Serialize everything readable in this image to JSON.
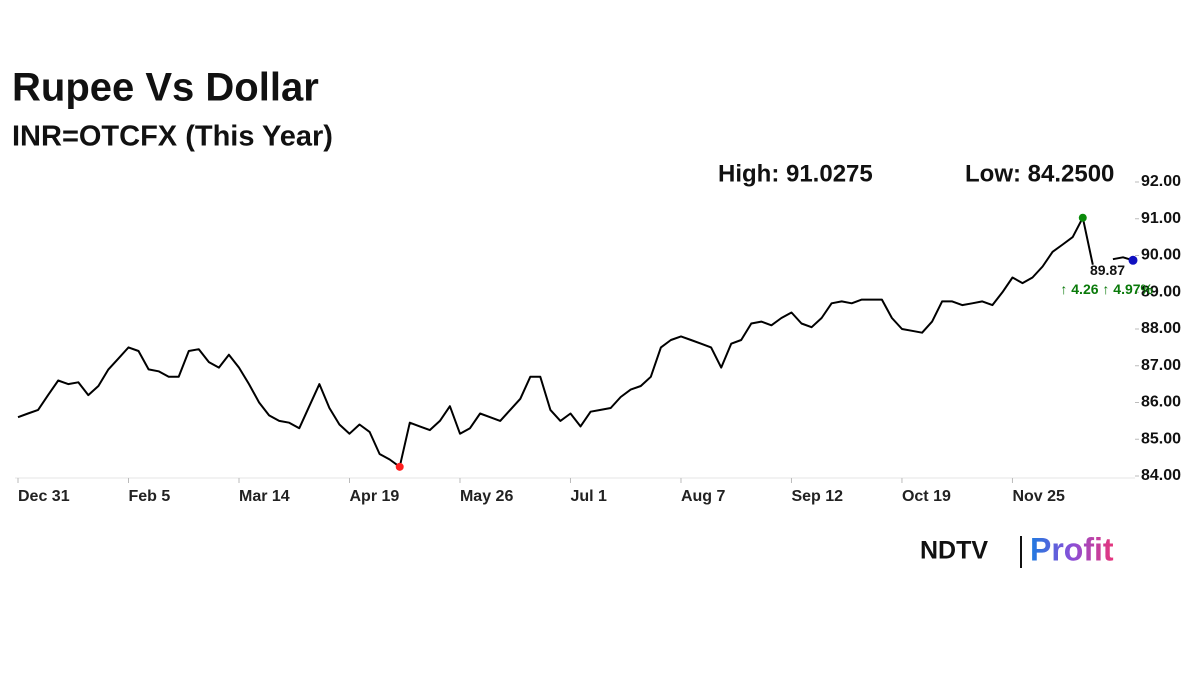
{
  "chart_data": {
    "type": "line",
    "title": "Rupee Vs Dollar",
    "subtitle": "INR=OTCFX (This Year)",
    "high_label": "High: 91.0275",
    "low_label": "Low: 84.2500",
    "last_label": "89.87",
    "change_label": "↑ 4.26 ↑ 4.97%",
    "categories": [
      "Dec 31",
      null,
      null,
      null,
      null,
      null,
      null,
      null,
      null,
      null,
      null,
      "Feb 5",
      null,
      null,
      null,
      null,
      null,
      null,
      null,
      null,
      null,
      null,
      "Mar 14",
      null,
      null,
      null,
      null,
      null,
      null,
      null,
      null,
      null,
      null,
      "Apr 19",
      null,
      null,
      null,
      null,
      null,
      null,
      null,
      null,
      null,
      null,
      "May 26",
      null,
      null,
      null,
      null,
      null,
      null,
      null,
      null,
      null,
      null,
      "Jul 1",
      null,
      null,
      null,
      null,
      null,
      null,
      null,
      null,
      null,
      null,
      "Aug 7",
      null,
      null,
      null,
      null,
      null,
      null,
      null,
      null,
      null,
      null,
      "Sep 12",
      null,
      null,
      null,
      null,
      null,
      null,
      null,
      null,
      null,
      null,
      "Oct 19",
      null,
      null,
      null,
      null,
      null,
      null,
      null,
      null,
      null,
      null,
      "Nov 25",
      null,
      null,
      null,
      null,
      null,
      null,
      null,
      null,
      null,
      null,
      null,
      null
    ],
    "series": [
      {
        "color": "#000000",
        "values": [
          85.6,
          85.7,
          85.8,
          86.2,
          86.6,
          86.5,
          86.55,
          86.2,
          86.45,
          86.9,
          87.2,
          87.5,
          87.4,
          86.9,
          86.85,
          86.7,
          86.7,
          87.4,
          87.45,
          87.1,
          86.95,
          87.3,
          86.95,
          86.5,
          86.0,
          85.65,
          85.5,
          85.45,
          85.3,
          85.9,
          86.5,
          85.85,
          85.4,
          85.15,
          85.4,
          85.2,
          84.6,
          84.45,
          84.25,
          85.45,
          85.35,
          85.25,
          85.5,
          85.9,
          85.15,
          85.3,
          85.7,
          85.6,
          85.5,
          85.8,
          86.1,
          86.7,
          86.7,
          85.8,
          85.5,
          85.7,
          85.35,
          85.75,
          85.8,
          85.85,
          86.15,
          86.35,
          86.45,
          86.7,
          87.5,
          87.7,
          87.8,
          87.7,
          87.6,
          87.5,
          86.95,
          87.6,
          87.7,
          88.15,
          88.2,
          88.1,
          88.3,
          88.45,
          88.15,
          88.05,
          88.3,
          88.7,
          88.75,
          88.7,
          88.8,
          88.8,
          88.8,
          88.3,
          88.0,
          87.95,
          87.9,
          88.2,
          88.75,
          88.75,
          88.65,
          88.7,
          88.75,
          88.65,
          89.0,
          89.4,
          89.25,
          89.4,
          89.7,
          90.1,
          90.3,
          90.5,
          91.0275,
          89.75,
          null,
          89.9,
          89.95,
          89.87
        ]
      }
    ],
    "high_color": "#0a8a0a",
    "low_color": "#ff2020",
    "last_color": "#1010c0",
    "change_color": "#0a7a0a",
    "ylim": [
      84,
      92
    ],
    "yticks": [
      {
        "value": 84,
        "label": "84.00"
      },
      {
        "value": 85,
        "label": "85.00"
      },
      {
        "value": 86,
        "label": "86.00"
      },
      {
        "value": 87,
        "label": "87.00"
      },
      {
        "value": 88,
        "label": "88.00"
      },
      {
        "value": 89,
        "label": "89.00"
      },
      {
        "value": 90,
        "label": "90.00"
      },
      {
        "value": 91,
        "label": "91.00"
      },
      {
        "value": 92,
        "label": "92.00"
      }
    ],
    "grid": false
  },
  "brand": {
    "name": "NDTV",
    "product": "Profit"
  }
}
